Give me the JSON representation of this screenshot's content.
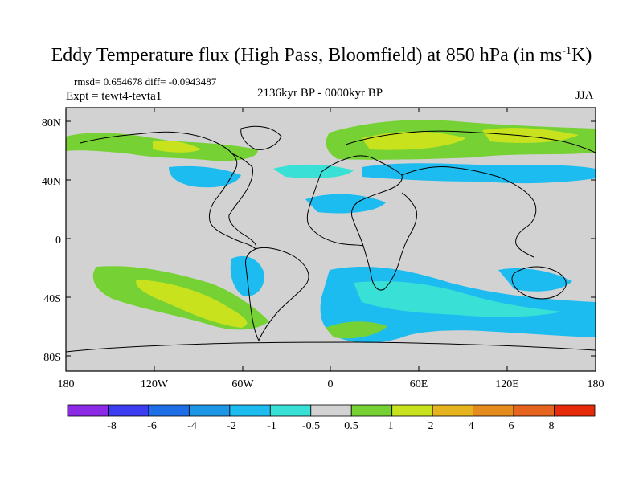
{
  "title_main": "Eddy Temperature flux (High Pass, Bloomfield) at 850 hPa (in ms",
  "title_sup": "-1",
  "title_end": "K)",
  "stats": "rmsd= 0.654678 diff= -0.0943487",
  "expt": "Expt = tewt4-tevta1",
  "period": "2136kyr BP - 0000kyr BP",
  "season": "JJA",
  "colors": {
    "land_gray": "#d2d2d2",
    "green": "#76d234",
    "yellow": "#c8e21e",
    "blue": "#1cbcf0",
    "cyan": "#38e0d6"
  },
  "map": {
    "lat_ticks": [
      "80N",
      "40N",
      "0",
      "40S",
      "80S"
    ],
    "lon_ticks": [
      "180",
      "120W",
      "60W",
      "0",
      "60E",
      "120E",
      "180"
    ]
  },
  "colorbar": {
    "labels": [
      "-8",
      "-6",
      "-4",
      "-2",
      "-1",
      "-0.5",
      "0.5",
      "1",
      "2",
      "4",
      "6",
      "8"
    ],
    "colors": [
      "#8c2ae6",
      "#3c3cf0",
      "#1e6ee8",
      "#1e96e6",
      "#1cbcf0",
      "#38e0d6",
      "#d2d2d2",
      "#76d234",
      "#c8e21e",
      "#e6b41e",
      "#e68c1e",
      "#e6641e",
      "#e62a0a"
    ]
  }
}
